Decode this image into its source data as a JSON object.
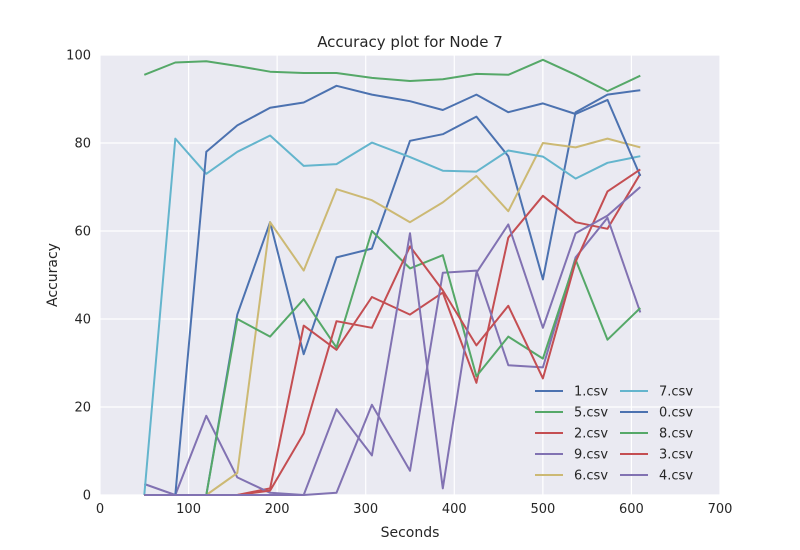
{
  "chart_data": {
    "type": "line",
    "title": "Accuracy plot for Node 7",
    "xlabel": "Seconds",
    "ylabel": "Accuracy",
    "xlim": [
      0,
      700
    ],
    "ylim": [
      0,
      100
    ],
    "xticks": [
      "0",
      "100",
      "200",
      "300",
      "400",
      "500",
      "600",
      "700"
    ],
    "yticks": [
      "0",
      "20",
      "40",
      "60",
      "80",
      "100"
    ],
    "grid": true,
    "legend_placement": "lower-right",
    "legend_columns": 2,
    "x": [
      50,
      85,
      120,
      155,
      192,
      230,
      267,
      307,
      350,
      387,
      425,
      461,
      500,
      537,
      573,
      610
    ],
    "series": [
      {
        "name": "1.csv",
        "color": "#4c72b0",
        "values": [
          0,
          0,
          0,
          41,
          62,
          32,
          54,
          56,
          80.5,
          82,
          86,
          77,
          49,
          87,
          91,
          92
        ]
      },
      {
        "name": "5.csv",
        "color": "#55a868",
        "values": [
          95.5,
          98.3,
          98.6,
          97.5,
          96.2,
          95.9,
          95.9,
          94.8,
          94.1,
          94.5,
          95.7,
          95.5,
          98.9,
          95.5,
          91.8,
          95.3
        ]
      },
      {
        "name": "2.csv",
        "color": "#c44e52",
        "values": [
          0,
          0,
          0,
          0,
          1.5,
          38.5,
          33,
          45,
          41,
          46,
          25.5,
          58.5,
          68,
          62,
          60.5,
          73
        ]
      },
      {
        "name": "9.csv",
        "color": "#8172b2",
        "values": [
          2.5,
          0,
          18,
          4,
          0.5,
          0,
          0.5,
          20.5,
          5.5,
          50.5,
          51,
          29.5,
          29,
          54,
          63,
          41.5
        ]
      },
      {
        "name": "6.csv",
        "color": "#ccb974",
        "values": [
          0,
          0,
          0,
          5,
          62,
          51,
          69.5,
          67,
          62,
          66.5,
          72.5,
          64.5,
          80,
          79,
          81,
          79
        ]
      },
      {
        "name": "7.csv",
        "color": "#64b5cd",
        "values": [
          0,
          81,
          73,
          78,
          81.7,
          74.8,
          75.2,
          80.1,
          76.8,
          73.7,
          73.5,
          78.3,
          76.9,
          71.9,
          75.5,
          77
        ]
      },
      {
        "name": "0.csv",
        "color": "#4c72b0",
        "values": [
          0,
          0,
          78,
          84,
          88,
          89.2,
          93,
          91,
          89.5,
          87.5,
          91,
          87,
          89,
          86.6,
          89.8,
          72.5
        ]
      },
      {
        "name": "8.csv",
        "color": "#55a868",
        "values": [
          0,
          0,
          0,
          40,
          36,
          44.5,
          33.5,
          60,
          51.5,
          54.5,
          27,
          36,
          31,
          53.5,
          35.3,
          42.5
        ]
      },
      {
        "name": "3.csv",
        "color": "#c44e52",
        "values": [
          0,
          0,
          0,
          0,
          1,
          14,
          39.5,
          38,
          56.5,
          46.5,
          34,
          43,
          26.5,
          53,
          69,
          74
        ]
      },
      {
        "name": "4.csv",
        "color": "#8172b2",
        "values": [
          0,
          0,
          0,
          0,
          0,
          0,
          19.5,
          9,
          59.5,
          1.5,
          50.5,
          61.5,
          38,
          59.5,
          63.5,
          70
        ]
      }
    ]
  }
}
